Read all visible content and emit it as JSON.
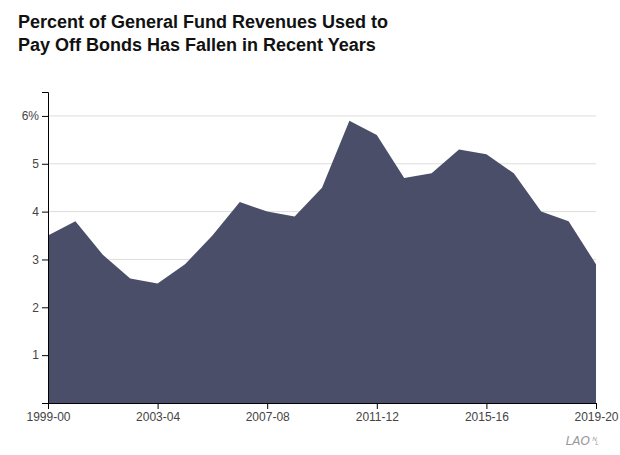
{
  "chart_data": {
    "type": "area",
    "title": "Percent of General Fund Revenues Used to\nPay Off Bonds Has Fallen in Recent Years",
    "categories": [
      "1999-00",
      null,
      null,
      null,
      "2003-04",
      null,
      null,
      null,
      "2007-08",
      null,
      null,
      null,
      "2011-12",
      null,
      null,
      null,
      "2015-16",
      null,
      null,
      null,
      "2019-20"
    ],
    "values": [
      3.5,
      3.8,
      3.1,
      2.6,
      2.5,
      2.9,
      3.5,
      4.2,
      4.0,
      3.9,
      4.5,
      5.9,
      5.6,
      4.7,
      4.8,
      5.3,
      5.2,
      4.8,
      4.0,
      3.8,
      2.9
    ],
    "color": "#4a4e69",
    "ylim": [
      0,
      6.5
    ],
    "yticks": [
      1,
      2,
      3,
      4,
      5,
      {
        "value": 6,
        "label": "6%"
      }
    ],
    "grid": true,
    "annotations": [
      "LAO␤"
    ]
  }
}
